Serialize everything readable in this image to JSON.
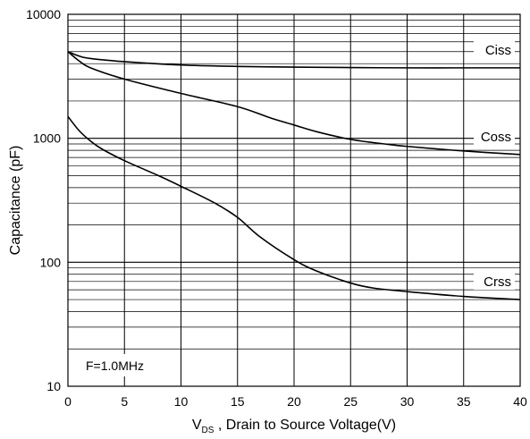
{
  "chart_data": {
    "type": "line",
    "title": "",
    "xlabel": {
      "main": "V",
      "sub": "DS",
      "rest": " , Drain to Source Voltage(V)"
    },
    "ylabel": "Capacitance (pF)",
    "xlim": [
      0,
      40
    ],
    "ylim": [
      10,
      10000
    ],
    "yscale": "log",
    "grid": true,
    "legend": "none",
    "x_ticks": [
      "0",
      "5",
      "10",
      "15",
      "20",
      "25",
      "30",
      "35",
      "40"
    ],
    "y_ticks": [
      "10",
      "100",
      "1000",
      "10000"
    ],
    "annotation": "F=1.0MHz",
    "colors": {
      "line": "#000000",
      "grid": "#000000",
      "background": "#ffffff"
    },
    "series": [
      {
        "name": "Ciss",
        "x": [
          0,
          1,
          2,
          5,
          10,
          15,
          20,
          25,
          30,
          35,
          40
        ],
        "y": [
          5000,
          4600,
          4400,
          4150,
          3900,
          3800,
          3750,
          3720,
          3700,
          3700,
          3700
        ]
      },
      {
        "name": "Coss",
        "x": [
          0,
          1,
          2,
          5,
          10,
          15,
          18,
          20,
          22,
          25,
          28,
          30,
          35,
          40
        ],
        "y": [
          5000,
          4200,
          3700,
          3000,
          2300,
          1800,
          1450,
          1280,
          1130,
          980,
          900,
          860,
          790,
          740
        ]
      },
      {
        "name": "Crss",
        "x": [
          0,
          1,
          2,
          3,
          5,
          8,
          10,
          13,
          15,
          17,
          20,
          22,
          25,
          27,
          30,
          35,
          40
        ],
        "y": [
          1500,
          1150,
          950,
          820,
          660,
          500,
          410,
          300,
          230,
          160,
          105,
          85,
          68,
          62,
          58,
          53,
          50
        ]
      }
    ]
  }
}
